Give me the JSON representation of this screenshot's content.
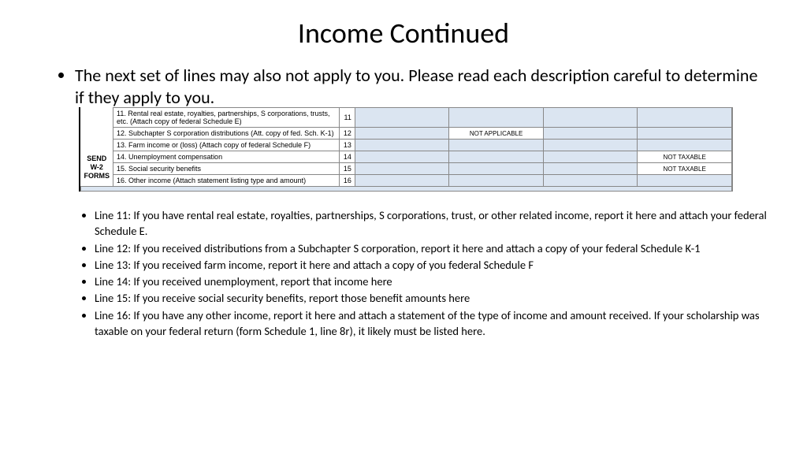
{
  "title": "Income Continued",
  "intro": "The next set of lines may also not apply to you. Please read each description careful to determine if they apply to you.",
  "side_label_1": "SEND W-2",
  "side_label_2": "FORMS",
  "rows": [
    {
      "num": "11.",
      "desc": "Rental real estate, royalties, partnerships, S corporations, trusts, etc. (Attach copy of federal Schedule E)",
      "r": "11",
      "c1_blue": true,
      "c1": "",
      "c2_blue": true,
      "c2": "",
      "c3_blue": true,
      "c3": "",
      "c4_blue": true,
      "c4": ""
    },
    {
      "num": "12.",
      "desc": "Subchapter S corporation distributions (Att. copy of fed. Sch. K-1)",
      "r": "12",
      "c1_blue": true,
      "c1": "",
      "c2_blue": false,
      "c2": "NOT APPLICABLE",
      "c3_blue": true,
      "c3": "",
      "c4_blue": true,
      "c4": ""
    },
    {
      "num": "13.",
      "desc": "Farm income or (loss) (Attach copy of federal Schedule F)",
      "r": "13",
      "c1_blue": true,
      "c1": "",
      "c2_blue": true,
      "c2": "",
      "c3_blue": true,
      "c3": "",
      "c4_blue": true,
      "c4": ""
    },
    {
      "num": "14.",
      "desc": "Unemployment compensation",
      "r": "14",
      "c1_blue": true,
      "c1": "",
      "c2_blue": true,
      "c2": "",
      "c3_blue": true,
      "c3": "",
      "c4_blue": false,
      "c4": "NOT TAXABLE"
    },
    {
      "num": "15.",
      "desc": "Social security benefits",
      "r": "15",
      "c1_blue": true,
      "c1": "",
      "c2_blue": true,
      "c2": "",
      "c3_blue": true,
      "c3": "",
      "c4_blue": false,
      "c4": "NOT TAXABLE"
    },
    {
      "num": "16.",
      "desc": "Other income (Attach statement listing type and amount)",
      "r": "16",
      "c1_blue": true,
      "c1": "",
      "c2_blue": true,
      "c2": "",
      "c3_blue": true,
      "c3": "",
      "c4_blue": true,
      "c4": ""
    }
  ],
  "notes": [
    "Line 11: If you have rental real estate, royalties, partnerships, S corporations, trust, or other related income, report it here and attach your federal Schedule E.",
    "Line 12: If you received distributions from a Subchapter S corporation, report it here and attach a copy of your federal Schedule K-1",
    "Line 13: If you received farm income, report it here and attach a copy of you federal Schedule F",
    "Line 14: If you received unemployment, report that income here",
    "Line 15: If you receive social security benefits, report those benefit amounts here",
    "Line 16: If you have any other income, report it here and attach a statement of the type of income and amount received. If your scholarship was taxable on your federal return (form Schedule 1, line 8r), it likely must be listed here."
  ]
}
